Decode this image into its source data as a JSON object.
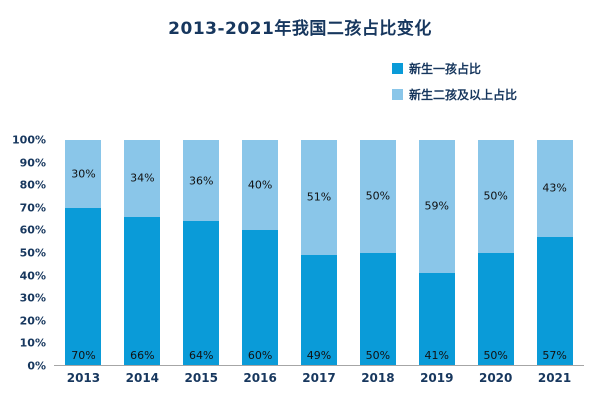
{
  "chart_data": {
    "type": "bar",
    "stacked": true,
    "title": "2013-2021年我国二孩占比变化",
    "categories": [
      "2013",
      "2014",
      "2015",
      "2016",
      "2017",
      "2018",
      "2019",
      "2020",
      "2021"
    ],
    "series": [
      {
        "name": "新生一孩占比",
        "color": "#0a9bd8",
        "values": [
          70,
          66,
          64,
          60,
          49,
          50,
          41,
          50,
          57
        ]
      },
      {
        "name": "新生二孩及以上占比",
        "color": "#8ac6e9",
        "values": [
          30,
          34,
          36,
          40,
          51,
          50,
          59,
          50,
          43
        ]
      }
    ],
    "value_suffix": "%",
    "xlabel": "",
    "ylabel": "",
    "ylim": [
      0,
      100
    ],
    "yticks": [
      "0%",
      "10%",
      "20%",
      "30%",
      "40%",
      "50%",
      "60%",
      "70%",
      "80%",
      "90%",
      "100%"
    ],
    "grid": false,
    "legend_position": "top-right"
  },
  "colors": {
    "title": "#17375e",
    "axis_text": "#17375e",
    "bar_label": "#111111",
    "axis_line": "#a6a6a6"
  }
}
